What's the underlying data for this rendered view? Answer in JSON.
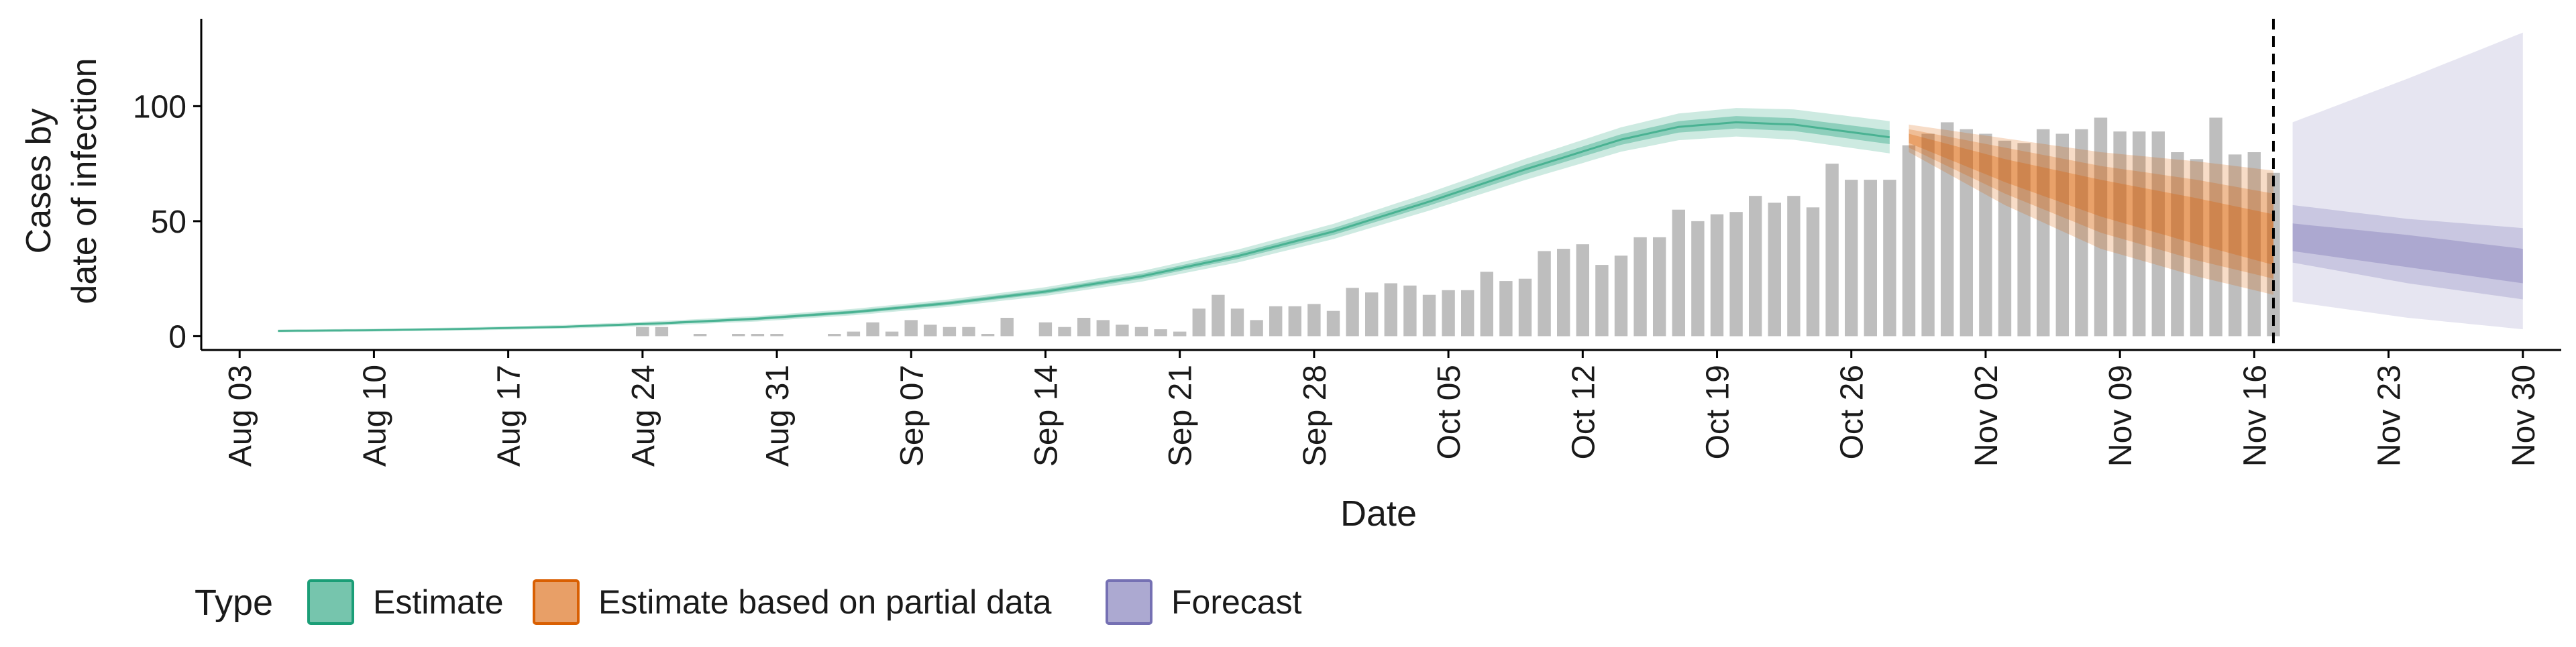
{
  "chart_data": {
    "type": "bar",
    "ylabel_line1": "Cases by",
    "ylabel_line2": "date of infection",
    "xlabel": "Date",
    "ylim": [
      -6,
      138
    ],
    "yticks": [
      0,
      50,
      100
    ],
    "x_start": "2020-08-01",
    "x_end": "2020-12-02",
    "xticks": [
      {
        "date": "2020-08-03",
        "label": "Aug 03"
      },
      {
        "date": "2020-08-10",
        "label": "Aug 10"
      },
      {
        "date": "2020-08-17",
        "label": "Aug 17"
      },
      {
        "date": "2020-08-24",
        "label": "Aug 24"
      },
      {
        "date": "2020-08-31",
        "label": "Aug 31"
      },
      {
        "date": "2020-09-07",
        "label": "Sep 07"
      },
      {
        "date": "2020-09-14",
        "label": "Sep 14"
      },
      {
        "date": "2020-09-21",
        "label": "Sep 21"
      },
      {
        "date": "2020-09-28",
        "label": "Sep 28"
      },
      {
        "date": "2020-10-05",
        "label": "Oct 05"
      },
      {
        "date": "2020-10-12",
        "label": "Oct 12"
      },
      {
        "date": "2020-10-19",
        "label": "Oct 19"
      },
      {
        "date": "2020-10-26",
        "label": "Oct 26"
      },
      {
        "date": "2020-11-02",
        "label": "Nov 02"
      },
      {
        "date": "2020-11-09",
        "label": "Nov 09"
      },
      {
        "date": "2020-11-16",
        "label": "Nov 16"
      },
      {
        "date": "2020-11-23",
        "label": "Nov 23"
      },
      {
        "date": "2020-11-30",
        "label": "Nov 30"
      }
    ],
    "bars": {
      "start_date": "2020-08-24",
      "values": [
        4,
        4,
        0,
        1,
        0,
        1,
        1,
        1,
        0,
        0,
        1,
        2,
        6,
        2,
        7,
        5,
        4,
        4,
        1,
        8,
        0,
        6,
        4,
        8,
        7,
        5,
        4,
        3,
        2,
        12,
        18,
        12,
        7,
        13,
        13,
        14,
        11,
        21,
        19,
        23,
        22,
        18,
        20,
        20,
        28,
        24,
        25,
        37,
        38,
        40,
        31,
        35,
        43,
        43,
        55,
        50,
        53,
        54,
        61,
        58,
        61,
        56,
        75,
        68,
        68,
        68,
        83,
        88,
        93,
        90,
        88,
        85,
        84,
        90,
        88,
        90,
        95,
        89,
        89,
        89,
        80,
        77,
        95,
        79,
        80,
        71
      ]
    },
    "estimate": {
      "start_date": "2020-08-05",
      "end_date": "2020-10-28",
      "days": [
        0,
        5,
        10,
        15,
        20,
        25,
        30,
        35,
        40,
        45,
        50,
        55,
        60,
        65,
        70,
        73,
        76,
        79,
        84
      ],
      "median": [
        2.3,
        2.6,
        3.2,
        4.1,
        5.6,
        7.6,
        10.5,
        14.4,
        19.4,
        26,
        34.8,
        45.5,
        58.5,
        72.5,
        85.5,
        91.0,
        93.0,
        92.0,
        86.5
      ],
      "inner_halfwidth": [
        0.3,
        0.3,
        0.3,
        0.4,
        0.5,
        0.6,
        0.7,
        0.8,
        0.9,
        1.1,
        1.3,
        1.5,
        1.7,
        2.0,
        2.3,
        2.5,
        2.7,
        2.8,
        3.0
      ],
      "outer_halfwidth": [
        0.6,
        0.6,
        0.7,
        0.8,
        1.0,
        1.2,
        1.4,
        1.6,
        1.9,
        2.3,
        2.8,
        3.3,
        3.9,
        4.6,
        5.3,
        5.8,
        6.2,
        6.6,
        7.0
      ]
    },
    "partial_estimate": {
      "start_date": "2020-10-29",
      "end_date": "2020-11-17",
      "days": [
        0,
        5,
        10,
        15,
        19
      ],
      "median": [
        86,
        72,
        60,
        50,
        42
      ],
      "inner": [
        [
          84,
          88
        ],
        [
          67,
          77
        ],
        [
          52,
          68
        ],
        [
          40,
          60
        ],
        [
          31,
          53
        ]
      ],
      "mid": [
        [
          82,
          90
        ],
        [
          62,
          82
        ],
        [
          45,
          74
        ],
        [
          33,
          68
        ],
        [
          25,
          62
        ]
      ],
      "outer": [
        [
          80,
          92
        ],
        [
          57,
          86
        ],
        [
          38,
          80
        ],
        [
          26,
          76
        ],
        [
          18,
          72
        ]
      ]
    },
    "forecast": {
      "start_date": "2020-11-18",
      "end_date": "2020-11-30",
      "days": [
        0,
        6,
        12
      ],
      "median": [
        42,
        36,
        30
      ],
      "inner": [
        [
          37,
          49
        ],
        [
          30,
          44
        ],
        [
          23,
          38
        ]
      ],
      "mid": [
        [
          32,
          57
        ],
        [
          23,
          51
        ],
        [
          16,
          47
        ]
      ],
      "outer": [
        [
          15,
          93
        ],
        [
          8,
          112
        ],
        [
          3,
          132
        ]
      ]
    },
    "vline_date": "2020-11-17",
    "legend": {
      "title": "Type",
      "items": [
        "Estimate",
        "Estimate based on partial data",
        "Forecast"
      ]
    },
    "colors": {
      "bar": "#bebebe",
      "estimate": "#1b9e77",
      "partial": "#d95f02",
      "forecast": "#7570b3",
      "axis": "#000000",
      "text": "#1a1a1a"
    }
  }
}
